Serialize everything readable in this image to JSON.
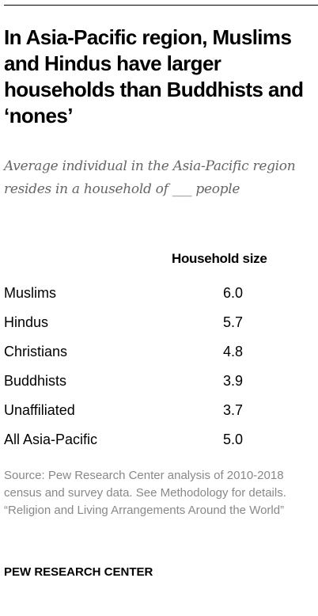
{
  "title": "In Asia-Pacific region, Muslims and Hindus have larger households than Buddhists and ‘nones’",
  "subtitle": "Average individual in the Asia-Pacific region resides in a household of ___ people",
  "chart_data": {
    "type": "table",
    "column_header": "Household size",
    "rows": [
      {
        "label": "Muslims",
        "value": "6.0"
      },
      {
        "label": "Hindus",
        "value": "5.7"
      },
      {
        "label": "Christians",
        "value": "4.8"
      },
      {
        "label": "Buddhists",
        "value": "3.9"
      },
      {
        "label": "Unaffiliated",
        "value": "3.7"
      },
      {
        "label": "All Asia-Pacific",
        "value": "5.0"
      }
    ]
  },
  "source": {
    "line1": "Source: Pew Research Center analysis of 2010-2018 census and survey data. See Methodology for details.",
    "line2": "“Religion and Living Arrangements Around the World”"
  },
  "footer": "PEW RESEARCH CENTER"
}
